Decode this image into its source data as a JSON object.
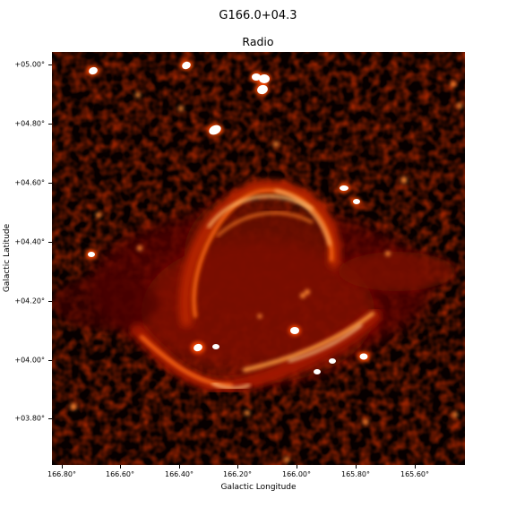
{
  "figure": {
    "title": "G166.0+04.3",
    "subtitle": "Radio",
    "xlabel": "Galactic Longitude",
    "ylabel": "Galactic Latitude",
    "colormap": [
      "#000000",
      "#3a0000",
      "#8a0a00",
      "#d23200",
      "#ff7a10",
      "#ffd08a",
      "#ffffff"
    ],
    "x_ticks": [
      "166.80°",
      "166.60°",
      "166.40°",
      "166.20°",
      "166.00°",
      "165.80°",
      "165.60°"
    ],
    "y_ticks": [
      "+05.00°",
      "+04.80°",
      "+04.60°",
      "+04.40°",
      "+04.20°",
      "+04.00°",
      "+03.80°"
    ]
  }
}
